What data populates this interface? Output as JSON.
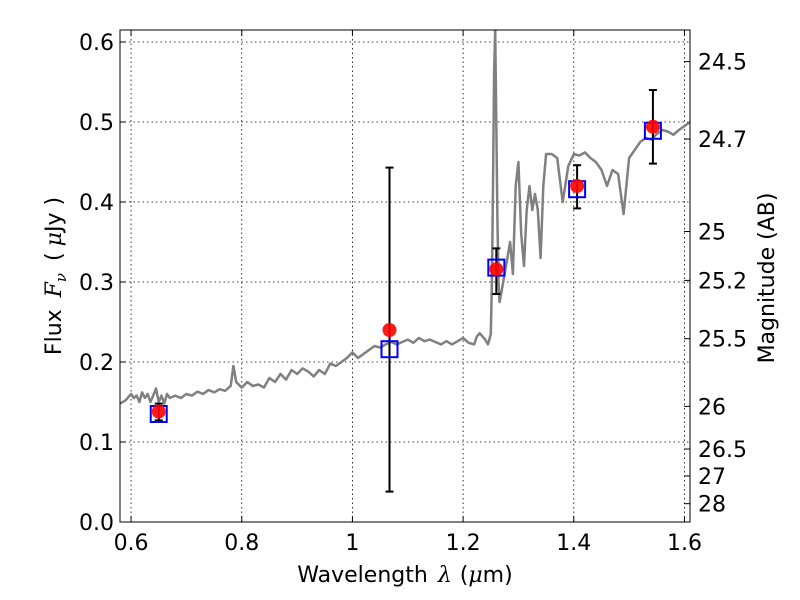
{
  "chart_data": {
    "type": "scatter",
    "title": "",
    "xlabel": {
      "prefix": "Wavelength",
      "symbol": "λ",
      "unit_open": "(",
      "unit_mu": "μ",
      "unit_rest": "m)"
    },
    "ylabel": {
      "prefix": "Flux",
      "symbol": "F",
      "subscript": "ν",
      "unit_open": "(",
      "unit_mu": "μ",
      "unit_rest": "Jy )"
    },
    "y2label": "Magnitude (AB)",
    "xlim": [
      0.58,
      1.61
    ],
    "ylim": [
      0.0,
      0.615
    ],
    "grid": true,
    "x_ticks": [
      0.6,
      0.8,
      1.0,
      1.2,
      1.4,
      1.6
    ],
    "x_tick_labels": [
      "0.6",
      "0.8",
      "1",
      "1.2",
      "1.4",
      "1.6"
    ],
    "y_ticks": [
      0.0,
      0.1,
      0.2,
      0.3,
      0.4,
      0.5,
      0.6
    ],
    "y_tick_labels": [
      "0.0",
      "0.1",
      "0.2",
      "0.3",
      "0.4",
      "0.5",
      "0.6"
    ],
    "mag_ticks": [
      24.5,
      24.7,
      25,
      25.2,
      25.5,
      26,
      26.5,
      27,
      28
    ],
    "mag_tick_labels": [
      "24.5",
      "24.7",
      "25",
      "25.2",
      "25.5",
      "26",
      "26.5",
      "27",
      "28"
    ],
    "colors": {
      "spectrum": "#808080",
      "model_box": "#0000ff",
      "observed": "#ff0000",
      "error_bar": "#000000",
      "grid": "#000000"
    },
    "spectrum": {
      "x": [
        0.58,
        0.59,
        0.6,
        0.605,
        0.61,
        0.615,
        0.62,
        0.625,
        0.63,
        0.635,
        0.64,
        0.645,
        0.65,
        0.655,
        0.66,
        0.665,
        0.67,
        0.68,
        0.69,
        0.7,
        0.71,
        0.72,
        0.73,
        0.74,
        0.75,
        0.76,
        0.77,
        0.78,
        0.785,
        0.79,
        0.8,
        0.81,
        0.82,
        0.83,
        0.84,
        0.85,
        0.86,
        0.87,
        0.88,
        0.89,
        0.9,
        0.91,
        0.92,
        0.93,
        0.94,
        0.95,
        0.96,
        0.97,
        0.98,
        0.99,
        1.0,
        1.01,
        1.02,
        1.03,
        1.04,
        1.05,
        1.06,
        1.07,
        1.08,
        1.09,
        1.1,
        1.11,
        1.12,
        1.13,
        1.14,
        1.15,
        1.16,
        1.17,
        1.18,
        1.19,
        1.2,
        1.21,
        1.22,
        1.225,
        1.23,
        1.235,
        1.24,
        1.245,
        1.25,
        1.252,
        1.254,
        1.256,
        1.258,
        1.26,
        1.262,
        1.264,
        1.266,
        1.27,
        1.275,
        1.28,
        1.285,
        1.29,
        1.295,
        1.3,
        1.305,
        1.31,
        1.315,
        1.32,
        1.325,
        1.33,
        1.335,
        1.34,
        1.345,
        1.35,
        1.36,
        1.37,
        1.38,
        1.39,
        1.4,
        1.41,
        1.42,
        1.43,
        1.44,
        1.45,
        1.46,
        1.47,
        1.48,
        1.49,
        1.5,
        1.51,
        1.52,
        1.53,
        1.54,
        1.55,
        1.56,
        1.57,
        1.58,
        1.59,
        1.6,
        1.61
      ],
      "y": [
        0.148,
        0.152,
        0.16,
        0.155,
        0.158,
        0.15,
        0.162,
        0.155,
        0.16,
        0.15,
        0.158,
        0.167,
        0.15,
        0.158,
        0.148,
        0.16,
        0.155,
        0.158,
        0.155,
        0.16,
        0.158,
        0.163,
        0.16,
        0.165,
        0.162,
        0.166,
        0.164,
        0.17,
        0.195,
        0.175,
        0.168,
        0.175,
        0.17,
        0.172,
        0.168,
        0.18,
        0.175,
        0.185,
        0.178,
        0.19,
        0.185,
        0.192,
        0.188,
        0.182,
        0.19,
        0.185,
        0.198,
        0.195,
        0.2,
        0.205,
        0.212,
        0.205,
        0.21,
        0.215,
        0.22,
        0.218,
        0.222,
        0.225,
        0.222,
        0.225,
        0.228,
        0.224,
        0.23,
        0.226,
        0.228,
        0.225,
        0.222,
        0.226,
        0.222,
        0.226,
        0.23,
        0.224,
        0.222,
        0.232,
        0.236,
        0.232,
        0.228,
        0.222,
        0.235,
        0.3,
        0.42,
        0.56,
        0.615,
        0.5,
        0.38,
        0.3,
        0.275,
        0.29,
        0.31,
        0.33,
        0.35,
        0.31,
        0.42,
        0.45,
        0.36,
        0.32,
        0.39,
        0.42,
        0.39,
        0.41,
        0.39,
        0.33,
        0.42,
        0.46,
        0.46,
        0.455,
        0.4,
        0.445,
        0.46,
        0.458,
        0.462,
        0.455,
        0.45,
        0.44,
        0.42,
        0.44,
        0.435,
        0.385,
        0.455,
        0.465,
        0.475,
        0.48,
        0.478,
        0.485,
        0.49,
        0.488,
        0.484,
        0.49,
        0.495,
        0.5
      ]
    },
    "model_points": [
      {
        "x": 0.65,
        "y": 0.135
      },
      {
        "x": 1.067,
        "y": 0.216
      },
      {
        "x": 1.26,
        "y": 0.318
      },
      {
        "x": 1.406,
        "y": 0.416
      },
      {
        "x": 1.543,
        "y": 0.489
      }
    ],
    "observed_points": [
      {
        "x": 0.65,
        "y": 0.138,
        "err_lo": 0.127,
        "err_hi": 0.148
      },
      {
        "x": 1.067,
        "y": 0.24,
        "err_lo": 0.038,
        "err_hi": 0.443
      },
      {
        "x": 1.26,
        "y": 0.316,
        "err_lo": 0.285,
        "err_hi": 0.342
      },
      {
        "x": 1.406,
        "y": 0.42,
        "err_lo": 0.392,
        "err_hi": 0.446
      },
      {
        "x": 1.543,
        "y": 0.494,
        "err_lo": 0.448,
        "err_hi": 0.54
      }
    ]
  }
}
